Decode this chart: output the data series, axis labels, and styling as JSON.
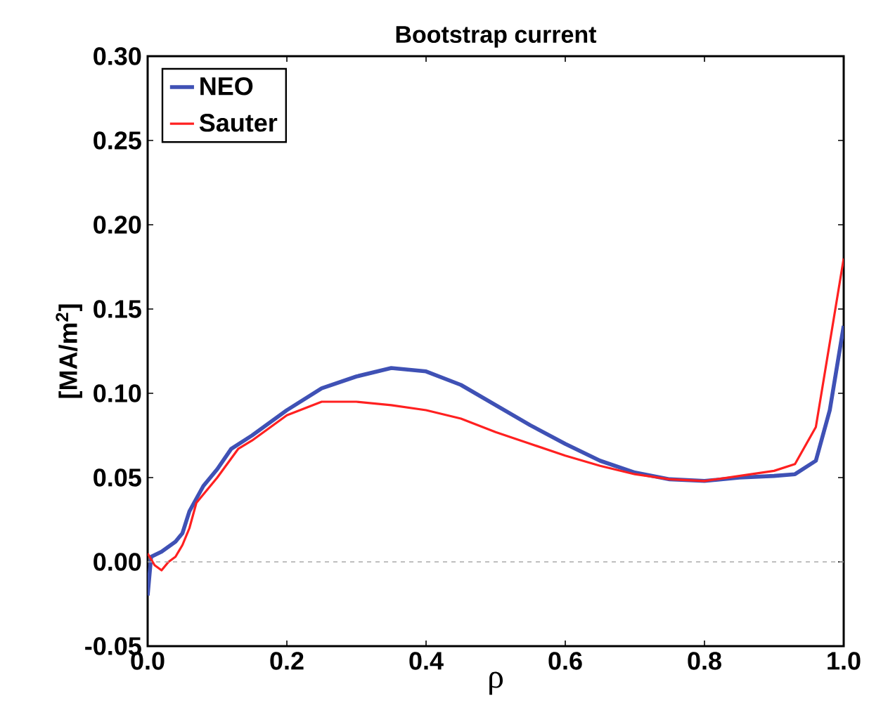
{
  "chart_data": {
    "type": "line",
    "title": "Bootstrap current",
    "xlabel": "ρ",
    "ylabel": "[MA/m$^{2}$]",
    "xlim": [
      0,
      1
    ],
    "xticks": [
      {
        "value": 0,
        "label": "0.0"
      },
      {
        "value": 0.2,
        "label": "0.2"
      },
      {
        "value": 0.4,
        "label": "0.4"
      },
      {
        "value": 0.6,
        "label": "0.6"
      },
      {
        "value": 0.8,
        "label": "0.8"
      },
      {
        "value": 1,
        "label": "1.0"
      }
    ],
    "ylim": [
      -0.05,
      0.3
    ],
    "yticks": [
      {
        "value": -0.05,
        "label": "-0.05"
      },
      {
        "value": 0,
        "label": "0.00"
      },
      {
        "value": 0.05,
        "label": "0.05"
      },
      {
        "value": 0.1,
        "label": "0.10"
      },
      {
        "value": 0.15,
        "label": "0.15"
      },
      {
        "value": 0.2,
        "label": "0.20"
      },
      {
        "value": 0.25,
        "label": "0.25"
      },
      {
        "value": 0.3,
        "label": "0.30"
      }
    ],
    "grid": false,
    "legend": "top left",
    "line_style": "solid",
    "marker": "none",
    "ref_lines": [
      {
        "axis": "y",
        "value": 0,
        "color": "#aaaaaa",
        "line_style": "dashed"
      }
    ],
    "series": [
      {
        "name": "NEO",
        "color": "#3f51b5",
        "x": [
          0,
          0.005,
          0.02,
          0.04,
          0.05,
          0.06,
          0.08,
          0.1,
          0.12,
          0.15,
          0.2,
          0.25,
          0.3,
          0.35,
          0.4,
          0.45,
          0.5,
          0.55,
          0.6,
          0.65,
          0.7,
          0.75,
          0.8,
          0.85,
          0.9,
          0.93,
          0.96,
          0.98,
          1.0
        ],
        "values": [
          -0.02,
          0.003,
          0.006,
          0.012,
          0.017,
          0.03,
          0.045,
          0.055,
          0.067,
          0.075,
          0.09,
          0.103,
          0.11,
          0.115,
          0.113,
          0.105,
          0.093,
          0.081,
          0.07,
          0.06,
          0.053,
          0.049,
          0.048,
          0.05,
          0.051,
          0.052,
          0.06,
          0.09,
          0.14
        ]
      },
      {
        "name": "Sauter",
        "color": "#ff2020",
        "x": [
          0,
          0.01,
          0.02,
          0.03,
          0.04,
          0.05,
          0.06,
          0.07,
          0.1,
          0.13,
          0.15,
          0.2,
          0.25,
          0.3,
          0.35,
          0.4,
          0.45,
          0.5,
          0.55,
          0.6,
          0.65,
          0.7,
          0.75,
          0.8,
          0.85,
          0.9,
          0.93,
          0.96,
          0.98,
          1.0
        ],
        "values": [
          0.005,
          -0.002,
          -0.005,
          0.0,
          0.003,
          0.01,
          0.02,
          0.035,
          0.05,
          0.067,
          0.072,
          0.087,
          0.095,
          0.095,
          0.093,
          0.09,
          0.085,
          0.077,
          0.07,
          0.063,
          0.057,
          0.052,
          0.049,
          0.048,
          0.051,
          0.054,
          0.058,
          0.08,
          0.13,
          0.18
        ]
      }
    ]
  }
}
